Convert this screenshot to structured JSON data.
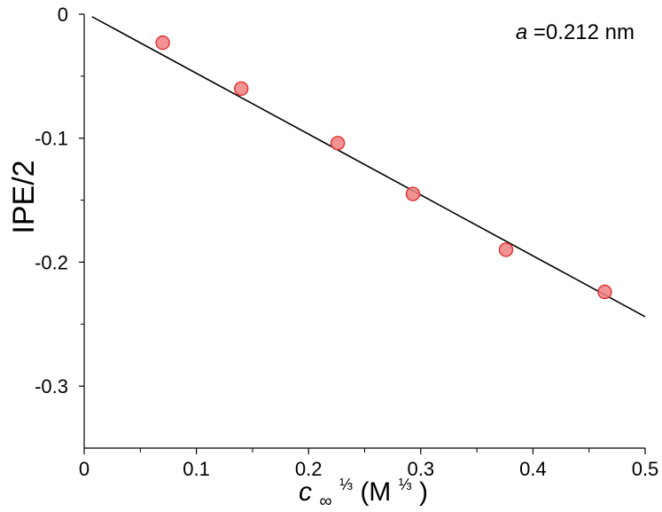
{
  "chart_data": {
    "type": "scatter",
    "ylabel": "IPE/2",
    "xlabel": {
      "var": "c",
      "subscript": "∞",
      "superscript": "⅓",
      "unit_open": " (M",
      "unit_superscript": "⅓",
      "unit_close": ")"
    },
    "annotation": {
      "var": "a",
      "rest": "=0.212 nm"
    },
    "xlim": [
      0,
      0.5
    ],
    "ylim": [
      -0.35,
      0
    ],
    "x_ticks": [
      0,
      0.1,
      0.2,
      0.3,
      0.4,
      0.5
    ],
    "x_tick_labels": [
      "0",
      "0.1",
      "0.2",
      "0.3",
      "0.4",
      "0.5"
    ],
    "x_minor_ticks": [
      0.05,
      0.15,
      0.25,
      0.35,
      0.45
    ],
    "y_ticks": [
      0,
      -0.1,
      -0.2,
      -0.3
    ],
    "y_tick_labels": [
      "0",
      "-0.1",
      "-0.2",
      "-0.3"
    ],
    "y_minor_ticks": [
      -0.05,
      -0.15,
      -0.25
    ],
    "grid": false,
    "series": [
      {
        "type": "scatter",
        "color": "#f08080",
        "edge_color": "#e03030",
        "points": [
          {
            "x": 0.07,
            "y": -0.023
          },
          {
            "x": 0.14,
            "y": -0.06
          },
          {
            "x": 0.226,
            "y": -0.104
          },
          {
            "x": 0.293,
            "y": -0.145
          },
          {
            "x": 0.376,
            "y": -0.19
          },
          {
            "x": 0.464,
            "y": -0.224
          }
        ]
      },
      {
        "type": "line",
        "color": "#000000",
        "points": [
          {
            "x": 0.007,
            "y": -0.002
          },
          {
            "x": 0.5,
            "y": -0.244
          }
        ]
      }
    ]
  }
}
